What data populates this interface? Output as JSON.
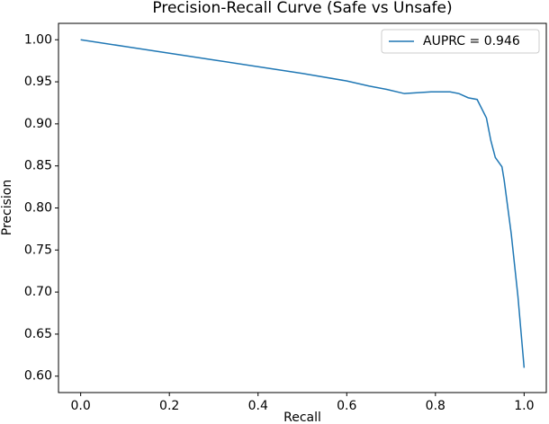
{
  "chart_data": {
    "type": "line",
    "title": "Precision-Recall Curve (Safe vs Unsafe)",
    "x_label": "Recall",
    "y_label": "Precision",
    "xlim": [
      -0.05,
      1.05
    ],
    "ylim": [
      0.5805,
      1.0195
    ],
    "xticks": [
      {
        "value": 0,
        "label": "0.0"
      },
      {
        "value": 0.2,
        "label": "0.2"
      },
      {
        "value": 0.4,
        "label": "0.4"
      },
      {
        "value": 0.6,
        "label": "0.6"
      },
      {
        "value": 0.8,
        "label": "0.8"
      },
      {
        "value": 1,
        "label": "1.0"
      }
    ],
    "yticks": [
      {
        "value": 0.6,
        "label": "0.60"
      },
      {
        "value": 0.65,
        "label": "0.65"
      },
      {
        "value": 0.7,
        "label": "0.70"
      },
      {
        "value": 0.75,
        "label": "0.75"
      },
      {
        "value": 0.8,
        "label": "0.80"
      },
      {
        "value": 0.85,
        "label": "0.85"
      },
      {
        "value": 0.9,
        "label": "0.90"
      },
      {
        "value": 0.95,
        "label": "0.95"
      },
      {
        "value": 1,
        "label": "1.00"
      }
    ],
    "grid": false,
    "legend": "upper right",
    "series": [
      {
        "name": "AUPRC = 0.946",
        "color": "#1f77b4",
        "x": [
          0,
          0.1,
          0.2,
          0.3,
          0.4,
          0.5,
          0.6,
          0.65,
          0.69,
          0.73,
          0.79,
          0.833,
          0.853,
          0.874,
          0.894,
          0.915,
          0.925,
          0.935,
          0.95,
          0.955,
          0.971,
          0.986,
          1.0
        ],
        "values": [
          1.0,
          0.992,
          0.984,
          0.976,
          0.968,
          0.96,
          0.951,
          0.945,
          0.941,
          0.936,
          0.938,
          0.938,
          0.936,
          0.931,
          0.929,
          0.907,
          0.88,
          0.86,
          0.849,
          0.833,
          0.769,
          0.695,
          0.61
        ]
      }
    ]
  }
}
